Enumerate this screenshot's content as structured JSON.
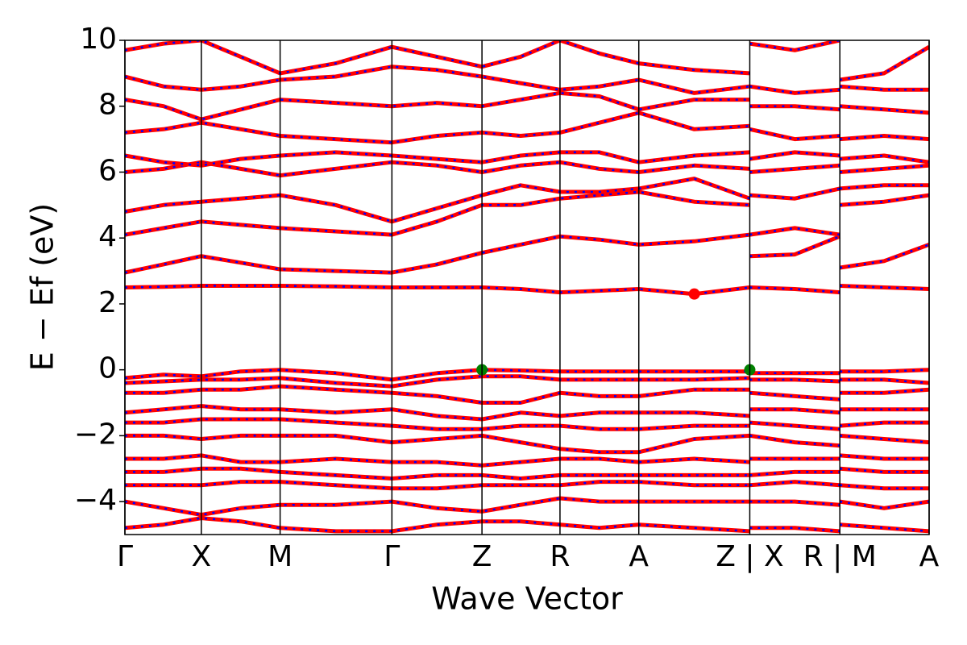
{
  "chart_data": {
    "type": "band_structure",
    "xlabel": "Wave Vector",
    "ylabel": "E − Ef (eV)",
    "xlim": [
      0,
      1
    ],
    "ylim": [
      -5,
      10
    ],
    "xticks": [
      {
        "value": 0,
        "label": "Γ"
      },
      {
        "value": 0.095,
        "label": "X"
      },
      {
        "value": 0.193,
        "label": "M"
      },
      {
        "value": 0.332,
        "label": "Γ"
      },
      {
        "value": 0.444,
        "label": "Z"
      },
      {
        "value": 0.541,
        "label": "R"
      },
      {
        "value": 0.639,
        "label": "A"
      },
      {
        "value": 0.777,
        "label": "Z | X"
      },
      {
        "value": 0.889,
        "label": "R | M"
      },
      {
        "value": 1,
        "label": "A"
      }
    ],
    "yticks": [
      {
        "value": -4,
        "label": "−4"
      },
      {
        "value": -2,
        "label": "−2"
      },
      0,
      2,
      4,
      6,
      8,
      10
    ],
    "color": "#ff0000",
    "dash_color": "#0000ff",
    "x": [
      0,
      0.048,
      0.095,
      0.144,
      0.193,
      0.262,
      0.332,
      0.388,
      0.444,
      0.492,
      0.541,
      0.59,
      0.639,
      0.708,
      0.777,
      0.777,
      0.777,
      0.833,
      0.889,
      0.889,
      0.889,
      0.944,
      1
    ],
    "series": [
      {
        "values": [
          -0.25,
          -0.15,
          -0.2,
          -0.05,
          0,
          -0.1,
          -0.3,
          -0.1,
          0,
          -0.02,
          -0.05,
          -0.05,
          -0.05,
          -0.05,
          -0.05,
          null,
          -0.1,
          -0.1,
          -0.1,
          null,
          -0.05,
          -0.05,
          0
        ]
      },
      {
        "values": [
          -0.4,
          -0.35,
          -0.3,
          -0.3,
          -0.25,
          -0.4,
          -0.5,
          -0.3,
          -0.2,
          -0.2,
          -0.3,
          -0.3,
          -0.3,
          -0.3,
          -0.25,
          null,
          -0.3,
          -0.3,
          -0.35,
          null,
          -0.3,
          -0.3,
          -0.4
        ]
      },
      {
        "values": [
          -0.7,
          -0.7,
          -0.6,
          -0.6,
          -0.5,
          -0.6,
          -0.7,
          -0.8,
          -1.0,
          -1.0,
          -0.7,
          -0.8,
          -0.8,
          -0.6,
          -0.6,
          null,
          -0.7,
          -0.8,
          -0.9,
          null,
          -0.7,
          -0.7,
          -0.6
        ]
      },
      {
        "values": [
          -1.3,
          -1.2,
          -1.1,
          -1.2,
          -1.2,
          -1.3,
          -1.2,
          -1.4,
          -1.5,
          -1.3,
          -1.4,
          -1.3,
          -1.3,
          -1.3,
          -1.4,
          null,
          -1.2,
          -1.2,
          -1.3,
          null,
          -1.2,
          -1.2,
          -1.2
        ]
      },
      {
        "values": [
          -1.6,
          -1.6,
          -1.5,
          -1.5,
          -1.5,
          -1.6,
          -1.7,
          -1.8,
          -1.8,
          -1.7,
          -1.7,
          -1.8,
          -1.8,
          -1.7,
          -1.7,
          null,
          -1.6,
          -1.7,
          -1.8,
          null,
          -1.7,
          -1.6,
          -1.6
        ]
      },
      {
        "values": [
          -2.0,
          -2.0,
          -2.1,
          -2.0,
          -2.0,
          -2.0,
          -2.2,
          -2.1,
          -2.0,
          -2.2,
          -2.4,
          -2.5,
          -2.5,
          -2.1,
          -2.0,
          null,
          -2.0,
          -2.2,
          -2.3,
          null,
          -2.0,
          -2.1,
          -2.2
        ]
      },
      {
        "values": [
          -2.7,
          -2.7,
          -2.6,
          -2.8,
          -2.8,
          -2.7,
          -2.8,
          -2.8,
          -2.9,
          -2.8,
          -2.7,
          -2.7,
          -2.8,
          -2.7,
          -2.8,
          null,
          -2.7,
          -2.7,
          -2.7,
          null,
          -2.6,
          -2.7,
          -2.7
        ]
      },
      {
        "values": [
          -3.1,
          -3.1,
          -3.0,
          -3.0,
          -3.1,
          -3.2,
          -3.3,
          -3.2,
          -3.2,
          -3.3,
          -3.2,
          -3.2,
          -3.2,
          -3.2,
          -3.2,
          null,
          -3.2,
          -3.1,
          -3.1,
          null,
          -3.0,
          -3.1,
          -3.1
        ]
      },
      {
        "values": [
          -3.5,
          -3.5,
          -3.5,
          -3.4,
          -3.4,
          -3.5,
          -3.6,
          -3.6,
          -3.5,
          -3.5,
          -3.5,
          -3.4,
          -3.4,
          -3.5,
          -3.5,
          null,
          -3.5,
          -3.4,
          -3.5,
          null,
          -3.5,
          -3.6,
          -3.6
        ]
      },
      {
        "values": [
          -4.0,
          -4.2,
          -4.4,
          -4.2,
          -4.1,
          -4.1,
          -4.0,
          -4.2,
          -4.3,
          -4.1,
          -3.9,
          -4.0,
          -4.0,
          -4.0,
          -4.0,
          null,
          -4.0,
          -4.0,
          -4.1,
          null,
          -4.0,
          -4.2,
          -4.0
        ]
      },
      {
        "values": [
          -4.8,
          -4.7,
          -4.5,
          -4.6,
          -4.8,
          -4.9,
          -4.9,
          -4.7,
          -4.6,
          -4.6,
          -4.7,
          -4.8,
          -4.7,
          -4.8,
          -4.9,
          null,
          -4.8,
          -4.8,
          -4.9,
          null,
          -4.7,
          -4.8,
          -4.9
        ]
      },
      {
        "values": [
          2.5,
          2.52,
          2.55,
          2.55,
          2.55,
          2.53,
          2.5,
          2.5,
          2.5,
          2.45,
          2.35,
          2.4,
          2.45,
          2.3,
          2.5,
          null,
          2.5,
          2.45,
          2.35,
          null,
          2.55,
          2.5,
          2.45
        ]
      },
      {
        "values": [
          2.95,
          3.2,
          3.45,
          3.25,
          3.05,
          3.0,
          2.95,
          3.2,
          3.55,
          3.8,
          4.05,
          3.95,
          3.8,
          3.9,
          4.1,
          null,
          3.45,
          3.5,
          4.05,
          null,
          3.1,
          3.3,
          3.8
        ]
      },
      {
        "values": [
          4.1,
          4.3,
          4.5,
          4.4,
          4.3,
          4.2,
          4.1,
          4.5,
          5.0,
          5.0,
          5.2,
          5.3,
          5.4,
          5.1,
          5.0,
          null,
          4.1,
          4.3,
          4.1,
          null,
          5.0,
          5.1,
          5.3
        ]
      },
      {
        "values": [
          4.8,
          5.0,
          5.1,
          5.2,
          5.3,
          5.0,
          4.5,
          4.9,
          5.3,
          5.6,
          5.4,
          5.4,
          5.5,
          5.8,
          5.2,
          null,
          5.3,
          5.2,
          5.5,
          null,
          5.5,
          5.6,
          5.6
        ]
      },
      {
        "values": [
          6.0,
          6.1,
          6.3,
          6.1,
          5.9,
          6.1,
          6.3,
          6.2,
          6.0,
          6.2,
          6.3,
          6.1,
          6.0,
          6.2,
          6.1,
          null,
          6.0,
          6.1,
          6.2,
          null,
          6.0,
          6.1,
          6.2
        ]
      },
      {
        "values": [
          6.5,
          6.3,
          6.2,
          6.4,
          6.5,
          6.6,
          6.5,
          6.4,
          6.3,
          6.5,
          6.6,
          6.6,
          6.3,
          6.5,
          6.6,
          null,
          6.4,
          6.6,
          6.5,
          null,
          6.4,
          6.5,
          6.3
        ]
      },
      {
        "values": [
          7.2,
          7.3,
          7.5,
          7.3,
          7.1,
          7.0,
          6.9,
          7.1,
          7.2,
          7.1,
          7.2,
          7.5,
          7.8,
          7.3,
          7.4,
          null,
          7.3,
          7.0,
          7.1,
          null,
          7.0,
          7.1,
          7.0
        ]
      },
      {
        "values": [
          8.2,
          8.0,
          7.6,
          7.9,
          8.2,
          8.1,
          8.0,
          8.1,
          8.0,
          8.2,
          8.4,
          8.3,
          7.9,
          8.2,
          8.2,
          null,
          8.0,
          8.0,
          7.9,
          null,
          8.0,
          7.9,
          7.8
        ]
      },
      {
        "values": [
          8.9,
          8.6,
          8.5,
          8.6,
          8.8,
          8.9,
          9.2,
          9.1,
          8.9,
          8.7,
          8.5,
          8.6,
          8.8,
          8.4,
          8.6,
          null,
          8.6,
          8.4,
          8.5,
          null,
          8.6,
          8.5,
          8.5
        ]
      },
      {
        "values": [
          9.7,
          9.9,
          10.0,
          9.5,
          9.0,
          9.3,
          9.8,
          9.5,
          9.2,
          9.5,
          10.0,
          9.6,
          9.3,
          9.1,
          9.0,
          null,
          9.9,
          9.7,
          10.0,
          null,
          8.8,
          9.0,
          9.8
        ]
      }
    ],
    "markers": [
      {
        "x": 0.444,
        "y": 0,
        "color": "#008000"
      },
      {
        "x": 0.777,
        "y": 0,
        "color": "#008000"
      },
      {
        "x": 0.708,
        "y": 2.3,
        "color": "#ff0000"
      }
    ]
  }
}
